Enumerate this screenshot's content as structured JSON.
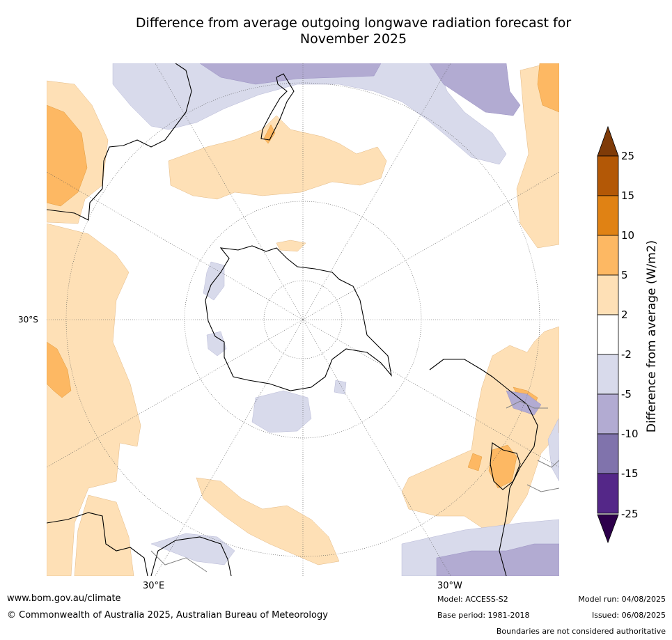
{
  "title_line1": "Difference from average outgoing longwave radiation forecast for",
  "title_line2": "November 2025",
  "map": {
    "lat_label": "30°S",
    "lon_left": "30°E",
    "lon_right": "30°W"
  },
  "colorbar": {
    "label": "Difference from average (W/m2)",
    "ticks": [
      "25",
      "15",
      "10",
      "5",
      "2",
      "-2",
      "-5",
      "-10",
      "-15",
      "-25"
    ],
    "colors": {
      "over": "#7f3b08",
      "b15_25": "#b35806",
      "b10_15": "#e08214",
      "b5_10": "#fdb863",
      "b2_5": "#fee0b6",
      "bm2_2": "#ffffff",
      "bm5_m2": "#d8daeb",
      "bm10_m5": "#b2abd2",
      "bm15_m10": "#8073ac",
      "bm25_m15": "#542788",
      "under": "#2d004b"
    }
  },
  "footer": {
    "site": "www.bom.gov.au/climate",
    "copyright": "© Commonwealth of Australia 2025, Australian Bureau of Meteorology",
    "model": "Model: ACCESS-S2",
    "base_period": "Base period: 1981-2018",
    "model_run": "Model run: 04/08/2025",
    "issued": "Issued: 06/08/2025",
    "boundaries": "Boundaries are not considered authoritative"
  }
}
